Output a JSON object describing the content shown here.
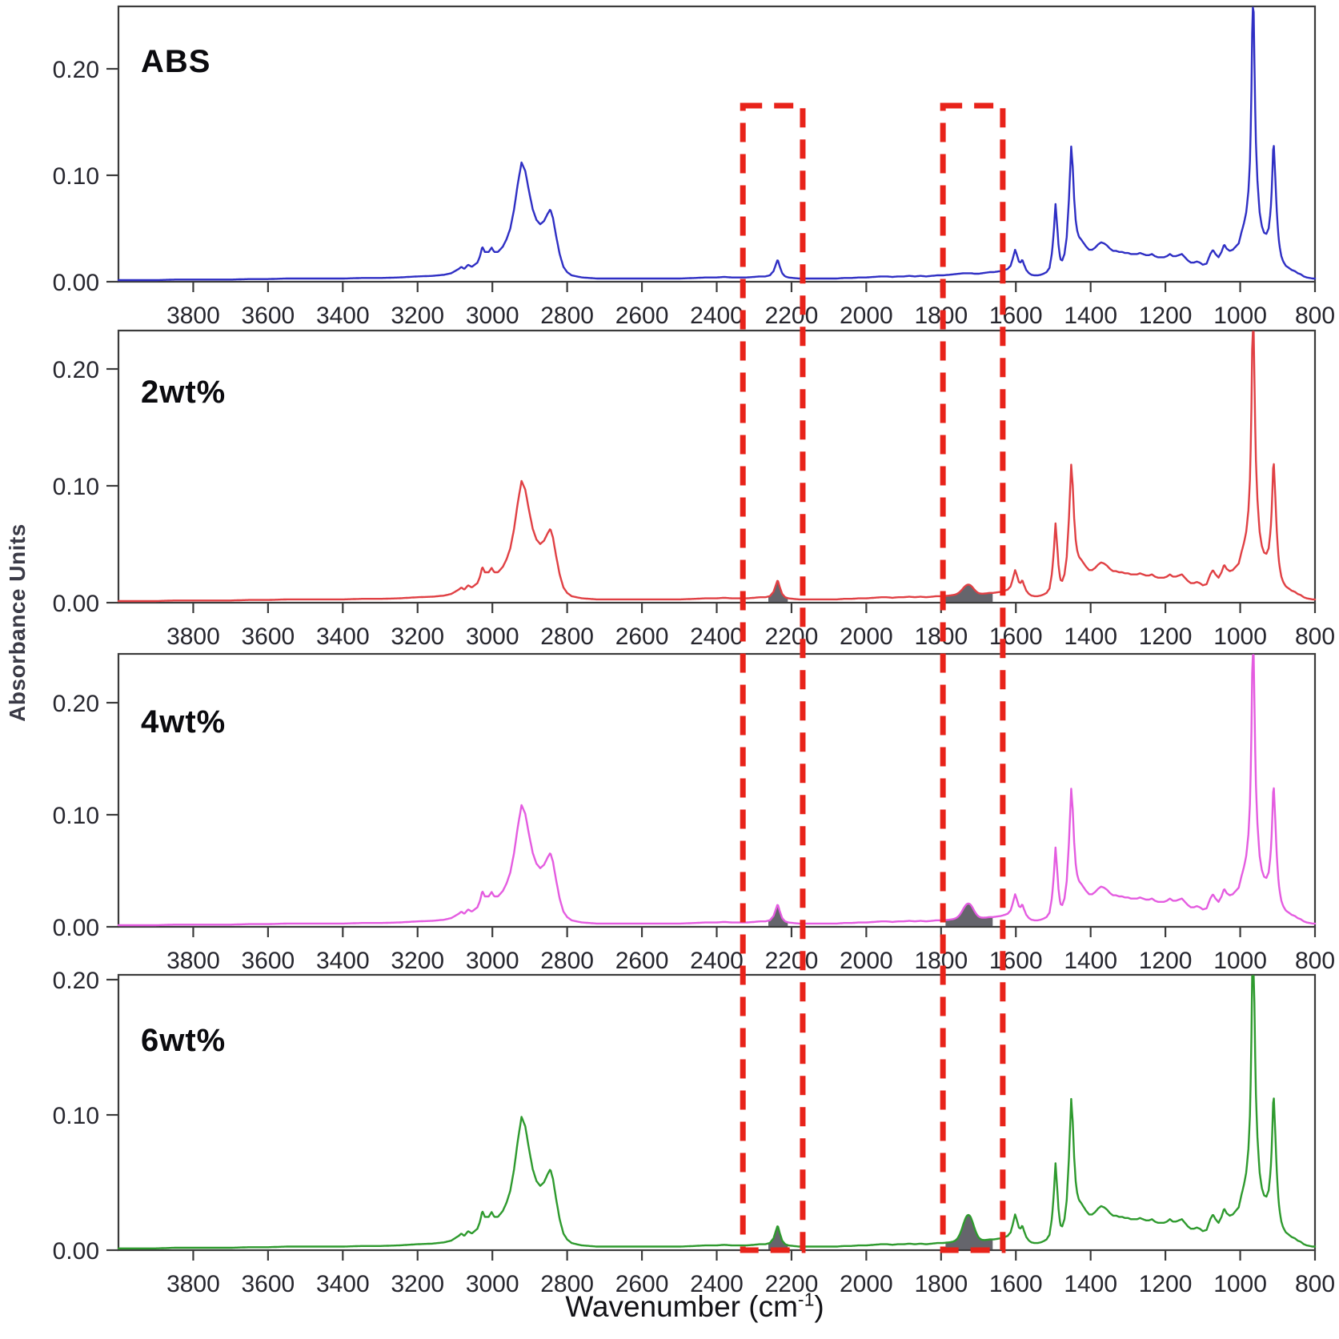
{
  "figure": {
    "y_axis_title": "Absorbance Units",
    "x_axis_title": {
      "text": "Wavenumber (cm",
      "superscript": "-1",
      "suffix": ")"
    }
  },
  "chart_data": {
    "type": "line",
    "title": "",
    "xlabel": "Wavenumber (cm-1)",
    "ylabel": "Absorbance Units",
    "x_range": [
      4000,
      800
    ],
    "x_ticks": [
      3800,
      3600,
      3400,
      3200,
      3000,
      2800,
      2600,
      2400,
      2200,
      2000,
      1800,
      1600,
      1400,
      1200,
      1000,
      800
    ],
    "y_ticks": [
      0.0,
      0.1,
      0.2
    ],
    "grid": false,
    "legend_position": "none",
    "notable_peaks_cm1": [
      2922,
      2845,
      2237,
      1727,
      1602,
      1494,
      1452,
      966,
      911
    ],
    "highlight_boxes": [
      {
        "wn_from": 2330,
        "wn_to": 2170
      },
      {
        "wn_from": 1795,
        "wn_to": 1635
      }
    ],
    "highlight_color": "#e8231a",
    "carbonyl_band": {
      "center": 1727,
      "width": 20
    },
    "panels": [
      {
        "label": "ABS",
        "color": "#2f2fc4",
        "y_max": 0.259,
        "scale": 1.0,
        "carbonyl_amplitude": 0.0,
        "shaded_bands": []
      },
      {
        "label": "2wt%",
        "color": "#e04044",
        "y_max": 0.233,
        "scale": 0.93,
        "carbonyl_amplitude": 0.008,
        "shaded_bands": [
          [
            2262,
            2210
          ],
          [
            1788,
            1662
          ]
        ]
      },
      {
        "label": "4wt%",
        "color": "#e45ce0",
        "y_max": 0.244,
        "scale": 0.97,
        "carbonyl_amplitude": 0.013,
        "shaded_bands": [
          [
            2262,
            2210
          ],
          [
            1788,
            1662
          ]
        ]
      },
      {
        "label": "6wt%",
        "color": "#2e9a2e",
        "y_max": 0.204,
        "scale": 0.88,
        "carbonyl_amplitude": 0.019,
        "shaded_bands": [
          [
            2262,
            2210
          ],
          [
            1788,
            1662
          ]
        ]
      }
    ],
    "base_spectrum": [
      [
        4000,
        0.0015
      ],
      [
        3950,
        0.0015
      ],
      [
        3900,
        0.0015
      ],
      [
        3850,
        0.002
      ],
      [
        3800,
        0.002
      ],
      [
        3750,
        0.002
      ],
      [
        3700,
        0.002
      ],
      [
        3650,
        0.0025
      ],
      [
        3600,
        0.0025
      ],
      [
        3550,
        0.003
      ],
      [
        3500,
        0.003
      ],
      [
        3450,
        0.003
      ],
      [
        3400,
        0.003
      ],
      [
        3350,
        0.0035
      ],
      [
        3300,
        0.0035
      ],
      [
        3250,
        0.004
      ],
      [
        3200,
        0.005
      ],
      [
        3160,
        0.0055
      ],
      [
        3130,
        0.0065
      ],
      [
        3110,
        0.008
      ],
      [
        3100,
        0.01
      ],
      [
        3090,
        0.012
      ],
      [
        3083,
        0.014
      ],
      [
        3075,
        0.012
      ],
      [
        3065,
        0.016
      ],
      [
        3055,
        0.014
      ],
      [
        3040,
        0.018
      ],
      [
        3033,
        0.024
      ],
      [
        3027,
        0.033
      ],
      [
        3020,
        0.028
      ],
      [
        3010,
        0.028
      ],
      [
        3002,
        0.032
      ],
      [
        2995,
        0.028
      ],
      [
        2985,
        0.028
      ],
      [
        2972,
        0.033
      ],
      [
        2962,
        0.04
      ],
      [
        2952,
        0.05
      ],
      [
        2942,
        0.068
      ],
      [
        2932,
        0.092
      ],
      [
        2922,
        0.112
      ],
      [
        2912,
        0.104
      ],
      [
        2902,
        0.085
      ],
      [
        2892,
        0.068
      ],
      [
        2882,
        0.058
      ],
      [
        2872,
        0.054
      ],
      [
        2862,
        0.057
      ],
      [
        2852,
        0.064
      ],
      [
        2845,
        0.068
      ],
      [
        2838,
        0.06
      ],
      [
        2830,
        0.044
      ],
      [
        2820,
        0.026
      ],
      [
        2810,
        0.014
      ],
      [
        2800,
        0.009
      ],
      [
        2788,
        0.006
      ],
      [
        2775,
        0.005
      ],
      [
        2760,
        0.004
      ],
      [
        2740,
        0.0035
      ],
      [
        2720,
        0.003
      ],
      [
        2700,
        0.003
      ],
      [
        2660,
        0.003
      ],
      [
        2620,
        0.003
      ],
      [
        2580,
        0.003
      ],
      [
        2540,
        0.003
      ],
      [
        2500,
        0.003
      ],
      [
        2460,
        0.0035
      ],
      [
        2430,
        0.004
      ],
      [
        2400,
        0.004
      ],
      [
        2380,
        0.0045
      ],
      [
        2360,
        0.004
      ],
      [
        2340,
        0.004
      ],
      [
        2320,
        0.004
      ],
      [
        2300,
        0.0045
      ],
      [
        2285,
        0.005
      ],
      [
        2270,
        0.005
      ],
      [
        2258,
        0.006
      ],
      [
        2248,
        0.01
      ],
      [
        2242,
        0.016
      ],
      [
        2237,
        0.021
      ],
      [
        2232,
        0.015
      ],
      [
        2225,
        0.008
      ],
      [
        2217,
        0.005
      ],
      [
        2208,
        0.004
      ],
      [
        2195,
        0.0035
      ],
      [
        2180,
        0.003
      ],
      [
        2160,
        0.003
      ],
      [
        2140,
        0.003
      ],
      [
        2120,
        0.003
      ],
      [
        2100,
        0.003
      ],
      [
        2080,
        0.003
      ],
      [
        2060,
        0.0035
      ],
      [
        2040,
        0.0035
      ],
      [
        2020,
        0.004
      ],
      [
        2000,
        0.004
      ],
      [
        1980,
        0.0045
      ],
      [
        1960,
        0.005
      ],
      [
        1945,
        0.005
      ],
      [
        1930,
        0.0045
      ],
      [
        1915,
        0.005
      ],
      [
        1900,
        0.005
      ],
      [
        1885,
        0.0055
      ],
      [
        1870,
        0.005
      ],
      [
        1855,
        0.0055
      ],
      [
        1840,
        0.005
      ],
      [
        1825,
        0.0055
      ],
      [
        1810,
        0.006
      ],
      [
        1795,
        0.006
      ],
      [
        1780,
        0.0065
      ],
      [
        1765,
        0.007
      ],
      [
        1752,
        0.0075
      ],
      [
        1740,
        0.008
      ],
      [
        1730,
        0.008
      ],
      [
        1720,
        0.008
      ],
      [
        1710,
        0.0075
      ],
      [
        1700,
        0.0075
      ],
      [
        1690,
        0.008
      ],
      [
        1680,
        0.0085
      ],
      [
        1670,
        0.009
      ],
      [
        1660,
        0.009
      ],
      [
        1650,
        0.0095
      ],
      [
        1640,
        0.01
      ],
      [
        1630,
        0.011
      ],
      [
        1622,
        0.012
      ],
      [
        1614,
        0.015
      ],
      [
        1608,
        0.022
      ],
      [
        1602,
        0.03
      ],
      [
        1597,
        0.025
      ],
      [
        1592,
        0.019
      ],
      [
        1587,
        0.018
      ],
      [
        1583,
        0.021
      ],
      [
        1578,
        0.016
      ],
      [
        1572,
        0.011
      ],
      [
        1565,
        0.008
      ],
      [
        1558,
        0.0065
      ],
      [
        1550,
        0.006
      ],
      [
        1542,
        0.006
      ],
      [
        1534,
        0.0065
      ],
      [
        1526,
        0.0075
      ],
      [
        1518,
        0.009
      ],
      [
        1510,
        0.013
      ],
      [
        1503,
        0.028
      ],
      [
        1498,
        0.05
      ],
      [
        1494,
        0.073
      ],
      [
        1490,
        0.055
      ],
      [
        1486,
        0.035
      ],
      [
        1481,
        0.021
      ],
      [
        1476,
        0.02
      ],
      [
        1470,
        0.026
      ],
      [
        1464,
        0.042
      ],
      [
        1458,
        0.078
      ],
      [
        1452,
        0.127
      ],
      [
        1448,
        0.108
      ],
      [
        1444,
        0.078
      ],
      [
        1440,
        0.058
      ],
      [
        1436,
        0.048
      ],
      [
        1431,
        0.042
      ],
      [
        1426,
        0.04
      ],
      [
        1420,
        0.037
      ],
      [
        1412,
        0.033
      ],
      [
        1404,
        0.03
      ],
      [
        1396,
        0.03
      ],
      [
        1388,
        0.032
      ],
      [
        1380,
        0.035
      ],
      [
        1372,
        0.037
      ],
      [
        1364,
        0.036
      ],
      [
        1356,
        0.034
      ],
      [
        1348,
        0.031
      ],
      [
        1340,
        0.029
      ],
      [
        1332,
        0.029
      ],
      [
        1324,
        0.028
      ],
      [
        1316,
        0.028
      ],
      [
        1308,
        0.027
      ],
      [
        1300,
        0.027
      ],
      [
        1292,
        0.026
      ],
      [
        1284,
        0.026
      ],
      [
        1276,
        0.026
      ],
      [
        1268,
        0.027
      ],
      [
        1260,
        0.026
      ],
      [
        1252,
        0.025
      ],
      [
        1244,
        0.025
      ],
      [
        1236,
        0.026
      ],
      [
        1228,
        0.024
      ],
      [
        1220,
        0.023
      ],
      [
        1212,
        0.023
      ],
      [
        1204,
        0.023
      ],
      [
        1196,
        0.024
      ],
      [
        1188,
        0.026
      ],
      [
        1180,
        0.024
      ],
      [
        1172,
        0.024
      ],
      [
        1164,
        0.025
      ],
      [
        1156,
        0.026
      ],
      [
        1148,
        0.023
      ],
      [
        1140,
        0.02
      ],
      [
        1132,
        0.018
      ],
      [
        1124,
        0.018
      ],
      [
        1116,
        0.019
      ],
      [
        1108,
        0.018
      ],
      [
        1100,
        0.016
      ],
      [
        1090,
        0.017
      ],
      [
        1080,
        0.026
      ],
      [
        1073,
        0.03
      ],
      [
        1066,
        0.026
      ],
      [
        1058,
        0.023
      ],
      [
        1050,
        0.028
      ],
      [
        1043,
        0.035
      ],
      [
        1036,
        0.031
      ],
      [
        1028,
        0.029
      ],
      [
        1020,
        0.03
      ],
      [
        1012,
        0.033
      ],
      [
        1004,
        0.036
      ],
      [
        997,
        0.046
      ],
      [
        990,
        0.055
      ],
      [
        984,
        0.065
      ],
      [
        978,
        0.085
      ],
      [
        973,
        0.12
      ],
      [
        969,
        0.2
      ],
      [
        966,
        0.3
      ],
      [
        963,
        0.23
      ],
      [
        959,
        0.14
      ],
      [
        954,
        0.095
      ],
      [
        948,
        0.065
      ],
      [
        942,
        0.052
      ],
      [
        936,
        0.046
      ],
      [
        930,
        0.045
      ],
      [
        924,
        0.05
      ],
      [
        919,
        0.065
      ],
      [
        915,
        0.09
      ],
      [
        911,
        0.135
      ],
      [
        907,
        0.105
      ],
      [
        903,
        0.072
      ],
      [
        899,
        0.048
      ],
      [
        895,
        0.034
      ],
      [
        890,
        0.024
      ],
      [
        885,
        0.019
      ],
      [
        878,
        0.015
      ],
      [
        870,
        0.013
      ],
      [
        862,
        0.011
      ],
      [
        854,
        0.01
      ],
      [
        846,
        0.008
      ],
      [
        838,
        0.007
      ],
      [
        830,
        0.005
      ],
      [
        822,
        0.004
      ],
      [
        814,
        0.0035
      ],
      [
        806,
        0.003
      ],
      [
        800,
        0.003
      ]
    ]
  }
}
